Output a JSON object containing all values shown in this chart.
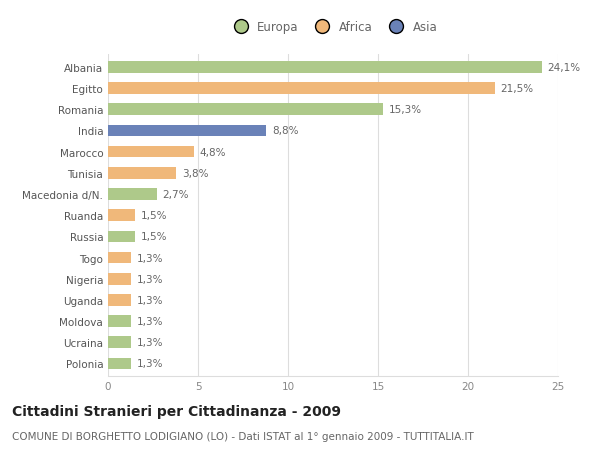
{
  "categories": [
    "Albania",
    "Egitto",
    "Romania",
    "India",
    "Marocco",
    "Tunisia",
    "Macedonia d/N.",
    "Ruanda",
    "Russia",
    "Togo",
    "Nigeria",
    "Uganda",
    "Moldova",
    "Ucraina",
    "Polonia"
  ],
  "values": [
    24.1,
    21.5,
    15.3,
    8.8,
    4.8,
    3.8,
    2.7,
    1.5,
    1.5,
    1.3,
    1.3,
    1.3,
    1.3,
    1.3,
    1.3
  ],
  "labels": [
    "24,1%",
    "21,5%",
    "15,3%",
    "8,8%",
    "4,8%",
    "3,8%",
    "2,7%",
    "1,5%",
    "1,5%",
    "1,3%",
    "1,3%",
    "1,3%",
    "1,3%",
    "1,3%",
    "1,3%"
  ],
  "continents": [
    "Europa",
    "Africa",
    "Europa",
    "Asia",
    "Africa",
    "Africa",
    "Europa",
    "Africa",
    "Europa",
    "Africa",
    "Africa",
    "Africa",
    "Europa",
    "Europa",
    "Europa"
  ],
  "colors": {
    "Europa": "#aec98a",
    "Africa": "#f0b87a",
    "Asia": "#6a82b8"
  },
  "title": "Cittadini Stranieri per Cittadinanza - 2009",
  "subtitle": "COMUNE DI BORGHETTO LODIGIANO (LO) - Dati ISTAT al 1° gennaio 2009 - TUTTITALIA.IT",
  "xlim": [
    0,
    25
  ],
  "xticks": [
    0,
    5,
    10,
    15,
    20,
    25
  ],
  "background_color": "#ffffff",
  "grid_color": "#dddddd",
  "bar_height": 0.55,
  "title_fontsize": 10,
  "subtitle_fontsize": 7.5,
  "label_fontsize": 7.5,
  "tick_fontsize": 7.5,
  "legend_fontsize": 8.5
}
